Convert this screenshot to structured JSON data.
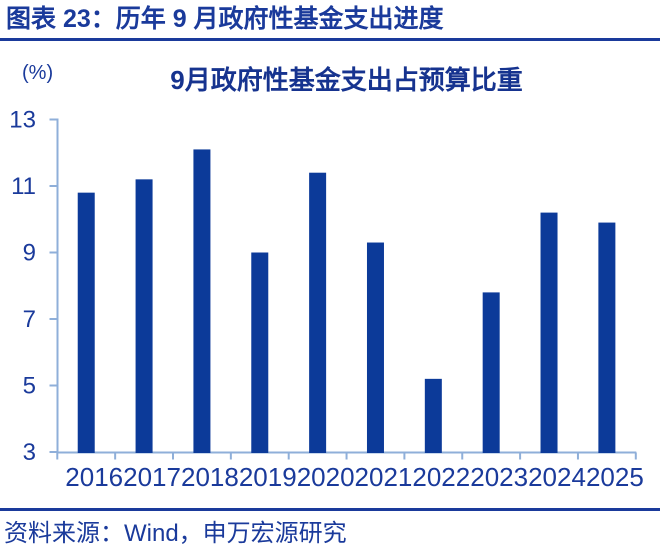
{
  "header": {
    "title": "图表 23：历年 9 月政府性基金支出进度"
  },
  "chart_data": {
    "type": "bar",
    "title": "9月政府性基金支出占预算比重",
    "unit_label": "(%)",
    "xlabel": "",
    "ylabel": "(%)",
    "categories": [
      "2016",
      "2017",
      "2018",
      "2019",
      "2020",
      "2021",
      "2022",
      "2023",
      "2024",
      "2025"
    ],
    "values": [
      10.8,
      11.2,
      12.1,
      9.0,
      11.4,
      9.3,
      5.2,
      7.8,
      10.2,
      9.9
    ],
    "ylim": [
      3,
      13
    ],
    "yticks": [
      13,
      11,
      9,
      7,
      5,
      3
    ],
    "grid": false,
    "legend_position": "none",
    "colors": {
      "bar": "#0C3A99",
      "axis": "#8FAFD9",
      "label": "#1A3A9B"
    }
  },
  "footer": {
    "source": "资料来源：Wind，申万宏源研究"
  },
  "colors": {
    "accent": "#1A3A9B",
    "background": "#FFFFFF"
  }
}
